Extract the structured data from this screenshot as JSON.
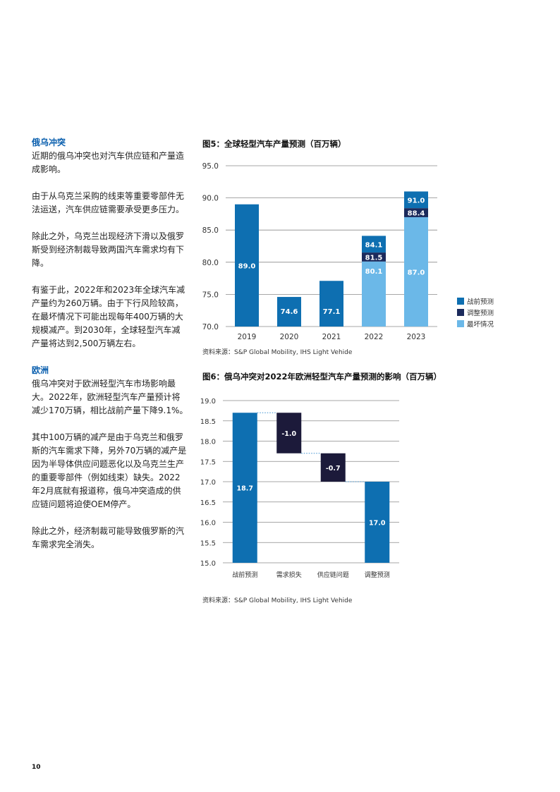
{
  "page_number": "10",
  "left": {
    "s1_title": "俄乌冲突",
    "s1_p1": "近期的俄乌冲突也对汽车供应链和产量造成影响。",
    "s1_p2": "由于从乌克兰采购的线束等重要零部件无法运送，汽车供应链需要承受更多压力。",
    "s1_p3": "除此之外，乌克兰出现经济下滑以及俄罗斯受到经济制裁导致两国汽车需求均有下降。",
    "s1_p4": "有鉴于此，2022年和2023年全球汽车减产量约为260万辆。由于下行风险较高，在最坏情况下可能出现每年400万辆的大规模减产。到2030年，全球轻型汽车减产量将达到2,500万辆左右。",
    "s2_title": "欧洲",
    "s2_p1": "俄乌冲突对于欧洲轻型汽车市场影响最大。2022年，欧洲轻型汽车产量预计将减少170万辆，相比战前产量下降9.1%。",
    "s2_p2": "其中100万辆的减产是由于乌克兰和俄罗斯的汽车需求下降，另外70万辆的减产是因为半导体供应问题恶化以及乌克兰生产的重要零部件（例如线束）缺失。2022年2月底就有报道称，俄乌冲突造成的供应链问题将迫使OEM停产。",
    "s2_p3": "除此之外，经济制裁可能导致俄罗斯的汽车需求完全消失。"
  },
  "fig5": {
    "title": "图5：全球轻型汽车产量预测（百万辆）",
    "source": "资料来源：S&P Global Mobility, IHS Light Vehide"
  },
  "fig6": {
    "title": "图6：俄乌冲突对2022年欧洲轻型汽车产量预测的影响（百万辆）",
    "source": "资料来源：S&P Global Mobility, IHS Light Vehide"
  },
  "chart_data": [
    {
      "type": "bar",
      "title": "图5：全球轻型汽车产量预测（百万辆）",
      "categories": [
        "2019",
        "2020",
        "2021",
        "2022",
        "2023"
      ],
      "ylim": [
        70.0,
        95.0
      ],
      "yticks": [
        "70.0",
        "75.0",
        "80.0",
        "85.0",
        "90.0",
        "95.0"
      ],
      "series": [
        {
          "name": "战前预测",
          "color": "#0e6fb1",
          "values": [
            89.0,
            74.6,
            77.1,
            84.1,
            91.0
          ]
        },
        {
          "name": "调整预测",
          "color": "#1b2a5c",
          "values": [
            null,
            null,
            null,
            81.5,
            88.4
          ]
        },
        {
          "name": "最坏情况",
          "color": "#6bb8e8",
          "values": [
            null,
            null,
            null,
            80.1,
            87.0
          ]
        }
      ],
      "legend": [
        "战前预测",
        "调整预测",
        "最坏情况"
      ],
      "legend_position": "right"
    },
    {
      "type": "waterfall",
      "title": "图6：俄乌冲突对2022年欧洲轻型汽车产量预测的影响（百万辆）",
      "categories": [
        "战前预测",
        "需求损失",
        "供应链问题",
        "调整预测"
      ],
      "values": [
        18.7,
        -1.0,
        -0.7,
        17.0
      ],
      "labels": [
        "18.7",
        "-1.0",
        "-0.7",
        "17.0"
      ],
      "colors": [
        "#0e6fb1",
        "#1c1a3a",
        "#1c1a3a",
        "#0e6fb1"
      ],
      "ylim": [
        15.0,
        19.0
      ],
      "yticks": [
        "15.0",
        "15.5",
        "16.0",
        "16.5",
        "17.0",
        "17.5",
        "18.0",
        "18.5",
        "19.0"
      ]
    }
  ]
}
